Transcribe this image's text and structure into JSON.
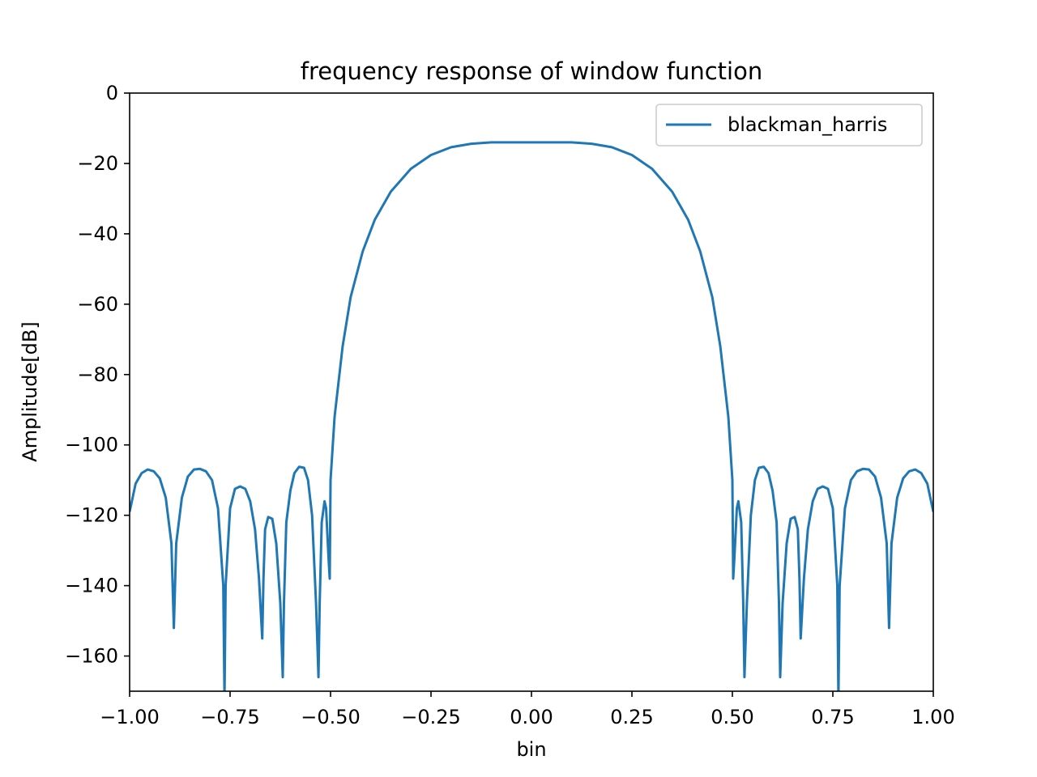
{
  "colors": {
    "series": "#1f77b4",
    "axes": "#000000",
    "background": "#ffffff",
    "legend_border": "#cccccc"
  },
  "chart_data": {
    "type": "line",
    "title": "frequency response of window function",
    "xlabel": "bin",
    "ylabel": "Amplitude[dB]",
    "xlim": [
      -1.0,
      1.0
    ],
    "ylim": [
      -170,
      0
    ],
    "grid": false,
    "legend_position": "top-right",
    "x_ticks": [
      -1.0,
      -0.75,
      -0.5,
      -0.25,
      0.0,
      0.25,
      0.5,
      0.75,
      1.0
    ],
    "x_tick_labels": [
      "−1.00",
      "−0.75",
      "−0.50",
      "−0.25",
      "0.00",
      "0.25",
      "0.50",
      "0.75",
      "1.00"
    ],
    "y_ticks": [
      0,
      -20,
      -40,
      -60,
      -80,
      -100,
      -120,
      -140,
      -160
    ],
    "y_tick_labels": [
      "0",
      "−20",
      "−40",
      "−60",
      "−80",
      "−100",
      "−120",
      "−140",
      "−160"
    ],
    "series": [
      {
        "name": "blackman_harris",
        "x": [
          -1.0,
          -0.985,
          -0.97,
          -0.955,
          -0.94,
          -0.925,
          -0.91,
          -0.896,
          -0.89,
          -0.884,
          -0.87,
          -0.855,
          -0.84,
          -0.825,
          -0.81,
          -0.795,
          -0.78,
          -0.767,
          -0.764,
          -0.761,
          -0.75,
          -0.738,
          -0.725,
          -0.712,
          -0.7,
          -0.688,
          -0.678,
          -0.67,
          -0.667,
          -0.663,
          -0.655,
          -0.645,
          -0.635,
          -0.625,
          -0.619,
          -0.616,
          -0.61,
          -0.6,
          -0.59,
          -0.578,
          -0.566,
          -0.556,
          -0.546,
          -0.536,
          -0.53,
          -0.527,
          -0.522,
          -0.515,
          -0.511,
          -0.505,
          -0.502,
          -0.5,
          -0.49,
          -0.47,
          -0.45,
          -0.42,
          -0.39,
          -0.35,
          -0.3,
          -0.25,
          -0.2,
          -0.15,
          -0.1,
          -0.05,
          0.0,
          0.05,
          0.1,
          0.15,
          0.2,
          0.25,
          0.3,
          0.35,
          0.39,
          0.42,
          0.45,
          0.47,
          0.49,
          0.5,
          0.502,
          0.505,
          0.511,
          0.515,
          0.522,
          0.527,
          0.53,
          0.536,
          0.546,
          0.556,
          0.566,
          0.578,
          0.59,
          0.6,
          0.61,
          0.616,
          0.619,
          0.625,
          0.635,
          0.645,
          0.655,
          0.663,
          0.667,
          0.67,
          0.678,
          0.688,
          0.7,
          0.712,
          0.725,
          0.738,
          0.75,
          0.761,
          0.764,
          0.767,
          0.78,
          0.795,
          0.81,
          0.825,
          0.84,
          0.855,
          0.87,
          0.884,
          0.89,
          0.896,
          0.91,
          0.925,
          0.94,
          0.955,
          0.97,
          0.985,
          1.0
        ],
        "y": [
          -119,
          -111,
          -108,
          -107,
          -107.5,
          -109.5,
          -115,
          -128,
          -152,
          -128,
          -115,
          -109,
          -107,
          -106.8,
          -107.5,
          -110,
          -118,
          -140,
          -172,
          -140,
          -118,
          -112.5,
          -111.8,
          -112.5,
          -116,
          -124,
          -138,
          -155,
          -138,
          -124,
          -120.5,
          -121,
          -128,
          -145,
          -166,
          -145,
          -122,
          -113,
          -108,
          -106.2,
          -106.5,
          -110,
          -120,
          -145,
          -166,
          -145,
          -122,
          -116,
          -118,
          -132,
          -138,
          -110,
          -92,
          -72,
          -58,
          -45,
          -36,
          -28,
          -21.5,
          -17.6,
          -15.4,
          -14.4,
          -14.0,
          -14.0,
          -14.0,
          -14.0,
          -14.0,
          -14.4,
          -15.4,
          -17.6,
          -21.5,
          -28,
          -36,
          -45,
          -58,
          -72,
          -92,
          -110,
          -138,
          -132,
          -118,
          -116,
          -122,
          -145,
          -166,
          -145,
          -120,
          -110,
          -106.5,
          -106.2,
          -108,
          -113,
          -122,
          -145,
          -166,
          -145,
          -128,
          -121,
          -120.5,
          -124,
          -138,
          -155,
          -138,
          -124,
          -116,
          -112.5,
          -111.8,
          -112.5,
          -118,
          -140,
          -172,
          -140,
          -118,
          -110,
          -107.5,
          -106.8,
          -107,
          -109,
          -115,
          -128,
          -152,
          -128,
          -115,
          -109.5,
          -107.5,
          -107,
          -108,
          -111,
          -119
        ]
      }
    ]
  }
}
